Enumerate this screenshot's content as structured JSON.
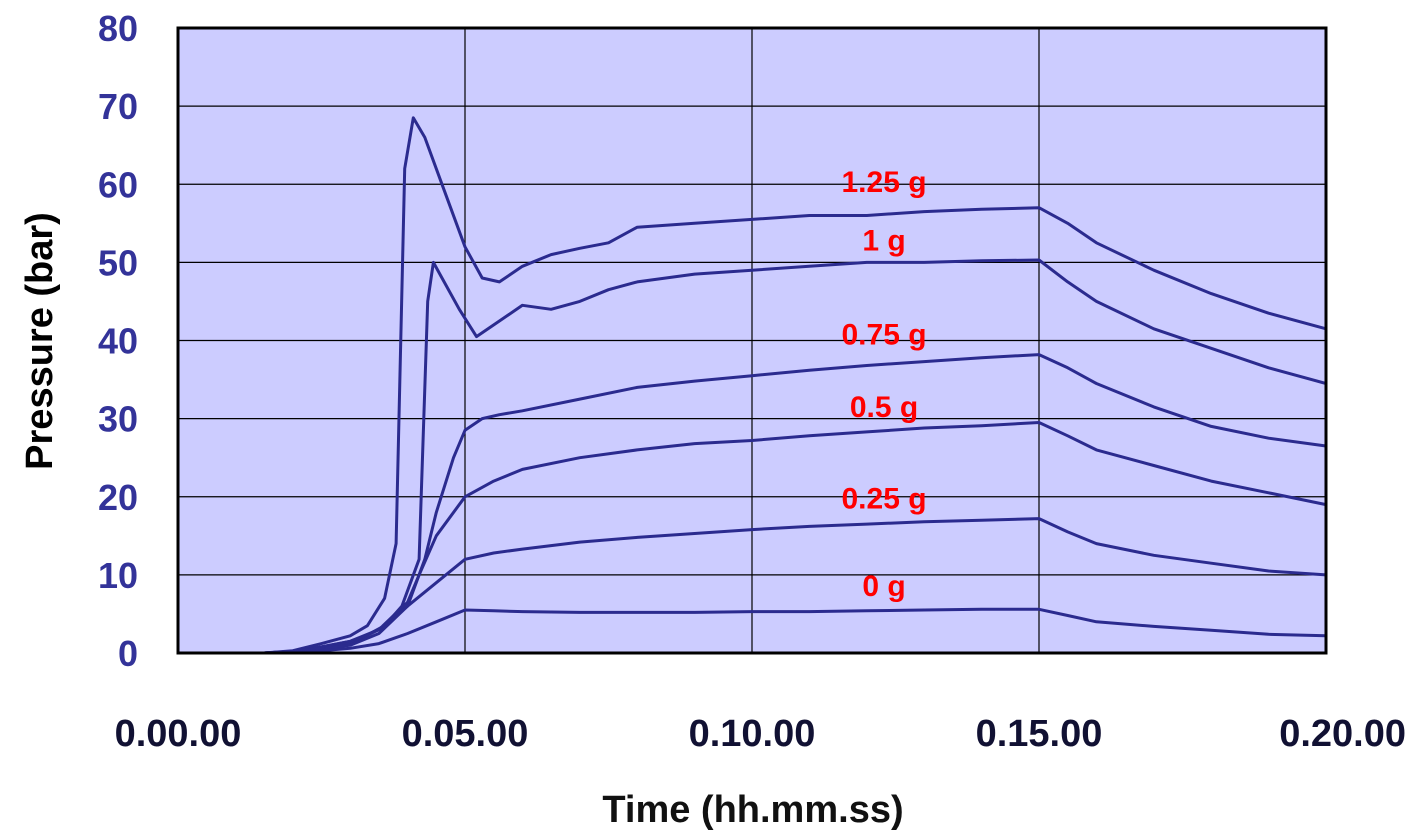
{
  "chart_data": {
    "type": "line",
    "title": "",
    "xlabel": "Time (hh.mm.ss)",
    "ylabel": "Pressure (bar)",
    "xlim": [
      0,
      20
    ],
    "ylim": [
      0,
      80
    ],
    "x_ticks": [
      0,
      5,
      10,
      15,
      20
    ],
    "x_tick_labels": [
      "0.00.00",
      "0.05.00",
      "0.10.00",
      "0.15.00",
      "0.20.00"
    ],
    "y_ticks": [
      0,
      10,
      20,
      30,
      40,
      50,
      60,
      70,
      80
    ],
    "y_tick_labels": [
      "0",
      "10",
      "20",
      "30",
      "40",
      "50",
      "60",
      "70",
      "80"
    ],
    "grid": true,
    "plot_background": "#ccccff",
    "line_color": "#2b2b8f",
    "label_color": "#ff0000",
    "axis_text_color": "#333399",
    "series": [
      {
        "name": "1.25 g",
        "x": [
          0,
          1,
          1.5,
          2,
          2.5,
          3,
          3.3,
          3.6,
          3.8,
          3.95,
          4.1,
          4.3,
          4.6,
          5,
          5.3,
          5.6,
          6,
          6.5,
          7,
          7.5,
          8,
          9,
          10,
          11,
          12,
          13,
          14,
          15,
          15.5,
          16,
          17,
          18,
          19,
          20
        ],
        "y": [
          0,
          0,
          0,
          0.3,
          1.2,
          2.2,
          3.5,
          7,
          14,
          62,
          68.5,
          66,
          60,
          52,
          48,
          47.5,
          49.5,
          51,
          51.8,
          52.5,
          54.5,
          55,
          55.5,
          56,
          56,
          56.5,
          56.8,
          57,
          55,
          52.5,
          49,
          46,
          43.5,
          41.5
        ]
      },
      {
        "name": "1 g",
        "x": [
          0,
          1,
          1.5,
          2,
          2.5,
          3,
          3.3,
          3.6,
          3.9,
          4.2,
          4.35,
          4.45,
          4.6,
          4.9,
          5.2,
          5.6,
          6,
          6.5,
          7,
          7.5,
          8,
          9,
          10,
          11,
          12,
          13,
          14,
          15,
          15.5,
          16,
          17,
          18,
          19,
          20
        ],
        "y": [
          0,
          0,
          0,
          0.2,
          0.8,
          1.5,
          2.3,
          3.5,
          6,
          12,
          45,
          50,
          48,
          44,
          40.5,
          42.5,
          44.5,
          44,
          45,
          46.5,
          47.5,
          48.5,
          49,
          49.5,
          50,
          50,
          50.2,
          50.3,
          47.5,
          45,
          41.5,
          39,
          36.5,
          34.5
        ]
      },
      {
        "name": "0.75 g",
        "x": [
          0,
          1,
          1.5,
          2,
          2.5,
          3,
          3.5,
          4,
          4.3,
          4.5,
          4.8,
          5,
          5.3,
          5.6,
          6,
          7,
          8,
          9,
          10,
          11,
          12,
          13,
          14,
          15,
          15.5,
          16,
          17,
          18,
          19,
          20
        ],
        "y": [
          0,
          0,
          0,
          0.2,
          0.8,
          1.5,
          3,
          6,
          12,
          18,
          25,
          28.5,
          30,
          30.5,
          31,
          32.5,
          34,
          34.8,
          35.5,
          36.2,
          36.8,
          37.3,
          37.8,
          38.2,
          36.5,
          34.5,
          31.5,
          29,
          27.5,
          26.5
        ]
      },
      {
        "name": "0.5 g",
        "x": [
          0,
          1,
          1.5,
          2,
          2.5,
          3,
          3.5,
          4,
          4.2,
          4.5,
          5,
          5.5,
          6,
          7,
          8,
          9,
          10,
          11,
          12,
          13,
          14,
          15,
          15.5,
          16,
          17,
          18,
          19,
          20
        ],
        "y": [
          0,
          0,
          0,
          0.2,
          0.6,
          1.2,
          3,
          6.5,
          10,
          15,
          20,
          22,
          23.5,
          25,
          26,
          26.8,
          27.2,
          27.8,
          28.3,
          28.8,
          29.1,
          29.5,
          27.8,
          26,
          24,
          22,
          20.5,
          19
        ]
      },
      {
        "name": "0.25 g",
        "x": [
          0,
          1,
          1.5,
          2,
          2.5,
          3,
          3.5,
          4,
          4.5,
          5,
          5.5,
          6,
          7,
          8,
          9,
          10,
          11,
          12,
          13,
          14,
          15,
          15.5,
          16,
          17,
          18,
          19,
          20
        ],
        "y": [
          0,
          0,
          0,
          0.2,
          0.5,
          1,
          2.5,
          6,
          9,
          12,
          12.8,
          13.3,
          14.2,
          14.8,
          15.3,
          15.8,
          16.2,
          16.5,
          16.8,
          17,
          17.2,
          15.5,
          14,
          12.5,
          11.5,
          10.5,
          10
        ]
      },
      {
        "name": "0 g",
        "x": [
          0,
          1,
          1.5,
          2,
          2.5,
          3,
          3.5,
          4,
          4.5,
          5,
          5.5,
          6,
          7,
          8,
          9,
          10,
          11,
          12,
          13,
          14,
          15,
          15.5,
          16,
          17,
          18,
          19,
          20
        ],
        "y": [
          0,
          0,
          0,
          0.1,
          0.3,
          0.6,
          1.2,
          2.5,
          4,
          5.5,
          5.4,
          5.3,
          5.2,
          5.2,
          5.2,
          5.3,
          5.3,
          5.4,
          5.5,
          5.6,
          5.6,
          4.8,
          4,
          3.4,
          2.9,
          2.4,
          2.2
        ]
      }
    ],
    "annotations": [
      {
        "text": "1.25 g",
        "series": "1.25 g",
        "x": 12.3,
        "y": 59
      },
      {
        "text": "1 g",
        "series": "1 g",
        "x": 12.3,
        "y": 51.5
      },
      {
        "text": "0.75 g",
        "series": "0.75 g",
        "x": 12.3,
        "y": 39.5
      },
      {
        "text": "0.5 g",
        "series": "0.5 g",
        "x": 12.3,
        "y": 30.2
      },
      {
        "text": "0.25 g",
        "series": "0.25 g",
        "x": 12.3,
        "y": 18.5
      },
      {
        "text": "0 g",
        "series": "0 g",
        "x": 12.3,
        "y": 7.3
      }
    ]
  }
}
